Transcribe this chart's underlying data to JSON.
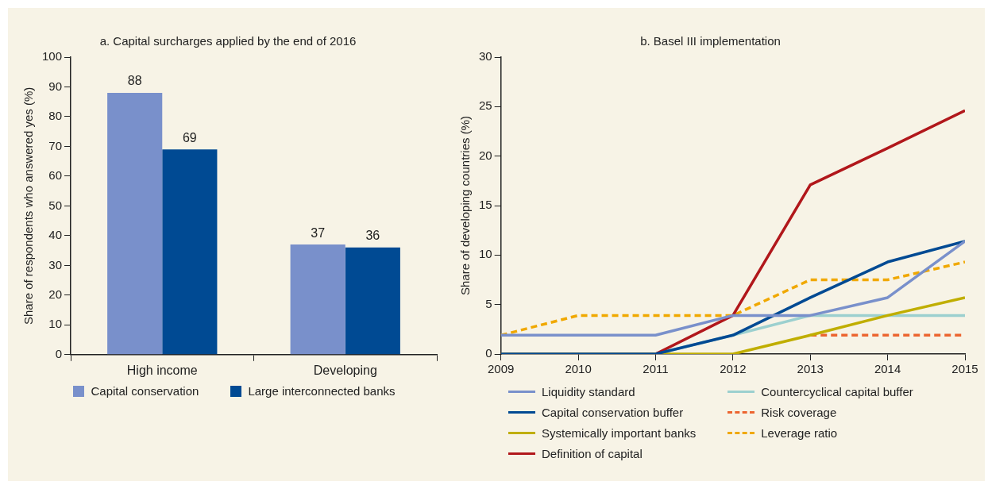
{
  "chart_data": [
    {
      "type": "bar",
      "title": "a. Capital surcharges applied by the end of 2016",
      "ylabel": "Share of respondents who answered yes (%)",
      "categories": [
        "High income",
        "Developing"
      ],
      "series": [
        {
          "name": "Capital conservation",
          "color": "#7990cb",
          "values": [
            88,
            37
          ]
        },
        {
          "name": "Large interconnected banks",
          "color": "#004a93",
          "values": [
            69,
            36
          ]
        }
      ],
      "ylim": [
        0,
        100
      ],
      "yticks": [
        0,
        10,
        20,
        30,
        40,
        50,
        60,
        70,
        80,
        90,
        100
      ],
      "grid": false,
      "legend": "bottom",
      "data_labels": true
    },
    {
      "type": "line",
      "title": "b. Basel III implementation",
      "ylabel": "Share of developing countries (%)",
      "x": [
        2009,
        2010,
        2011,
        2012,
        2013,
        2014,
        2015
      ],
      "series": [
        {
          "name": "Liquidity standard",
          "color": "#7990cb",
          "values": [
            1.9,
            1.9,
            1.9,
            3.9,
            3.9,
            5.7,
            11.4
          ]
        },
        {
          "name": "Capital conservation buffer",
          "color": "#004a93",
          "values": [
            0,
            0,
            0,
            1.9,
            5.7,
            9.3,
            11.4
          ]
        },
        {
          "name": "Systemically important banks",
          "color": "#c0ae00",
          "values": [
            0,
            0,
            0,
            0,
            1.9,
            3.9,
            5.7
          ]
        },
        {
          "name": "Definition of capital",
          "color": "#b1171b",
          "values": [
            0,
            0,
            0,
            3.9,
            17.1,
            20.8,
            24.6
          ]
        },
        {
          "name": "Countercyclical capital buffer",
          "color": "#9cd0cf",
          "values": [
            null,
            null,
            0,
            1.9,
            3.9,
            3.9,
            3.9
          ]
        },
        {
          "name": "Risk coverage",
          "color": "#ec6530",
          "line_style": "dashed",
          "values": [
            null,
            null,
            null,
            null,
            1.9,
            1.9,
            1.9
          ]
        },
        {
          "name": "Leverage ratio",
          "color": "#f0a800",
          "line_style": "dashed",
          "values": [
            1.9,
            3.9,
            3.9,
            3.9,
            7.5,
            7.5,
            9.3
          ]
        }
      ],
      "xlim": [
        2009,
        2015
      ],
      "xticks": [
        2009,
        2010,
        2011,
        2012,
        2013,
        2014,
        2015
      ],
      "ylim": [
        0,
        30
      ],
      "yticks": [
        0,
        5,
        10,
        15,
        20,
        25,
        30
      ],
      "grid": false,
      "legend": "bottom",
      "marker": "none"
    }
  ]
}
